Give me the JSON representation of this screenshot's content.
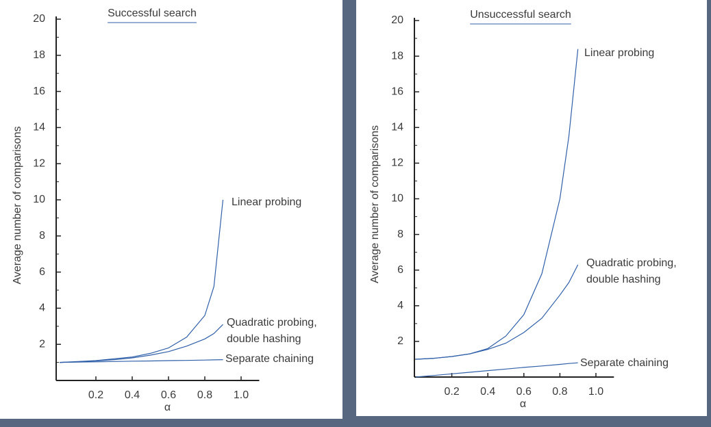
{
  "chart_data": [
    {
      "type": "line",
      "title": "Successful search",
      "x_label": "α",
      "y_label": "Average number of comparisons",
      "xlim": [
        0,
        1.1
      ],
      "ylim": [
        0,
        20
      ],
      "xticks": [
        0.2,
        0.4,
        0.6,
        0.8,
        {
          "value": 1,
          "label": "1.0"
        }
      ],
      "yticks": [
        2,
        4,
        6,
        8,
        10,
        12,
        14,
        16,
        18,
        20
      ],
      "x": [
        0,
        0.1,
        0.2,
        0.3,
        0.4,
        0.5,
        0.6,
        0.7,
        0.8,
        0.85,
        0.9
      ],
      "series": [
        {
          "name": "Linear probing",
          "color": "#2f5fa8",
          "values": [
            1,
            1.05,
            1.1,
            1.2,
            1.3,
            1.5,
            1.8,
            2.4,
            3.6,
            5.2,
            10
          ]
        },
        {
          "name": "Quadratic probing, double hashing",
          "color": "#2f5fa8",
          "values": [
            1,
            1.03,
            1.08,
            1.15,
            1.25,
            1.4,
            1.6,
            1.9,
            2.3,
            2.6,
            3.1
          ]
        },
        {
          "name": "Separate chaining",
          "color": "#2f5fa8",
          "values": [
            1,
            1.02,
            1.03,
            1.05,
            1.07,
            1.08,
            1.1,
            1.11,
            1.13,
            1.14,
            1.15
          ]
        }
      ]
    },
    {
      "type": "line",
      "title": "Unsuccessful search",
      "x_label": "α",
      "y_label": "Average number of comparisons",
      "xlim": [
        0,
        1.1
      ],
      "ylim": [
        0,
        20
      ],
      "xticks": [
        0.2,
        0.4,
        0.6,
        0.8,
        {
          "value": 1,
          "label": "1.0"
        }
      ],
      "yticks": [
        2,
        4,
        6,
        8,
        10,
        12,
        14,
        16,
        18,
        20
      ],
      "x": [
        0,
        0.1,
        0.2,
        0.3,
        0.4,
        0.5,
        0.6,
        0.7,
        0.8,
        0.85,
        0.9
      ],
      "series": [
        {
          "name": "Linear probing",
          "color": "#2f5fa8",
          "values": [
            1,
            1.05,
            1.15,
            1.3,
            1.6,
            2.3,
            3.5,
            5.8,
            10,
            13.5,
            18.4
          ]
        },
        {
          "name": "Quadratic probing, double hashing",
          "color": "#2f5fa8",
          "values": [
            1,
            1.05,
            1.15,
            1.3,
            1.55,
            1.9,
            2.5,
            3.3,
            4.6,
            5.3,
            6.3
          ]
        },
        {
          "name": "Separate chaining",
          "color": "#2f5fa8",
          "values": [
            0,
            0.09,
            0.18,
            0.27,
            0.36,
            0.45,
            0.54,
            0.62,
            0.71,
            0.76,
            0.8
          ]
        }
      ]
    }
  ]
}
